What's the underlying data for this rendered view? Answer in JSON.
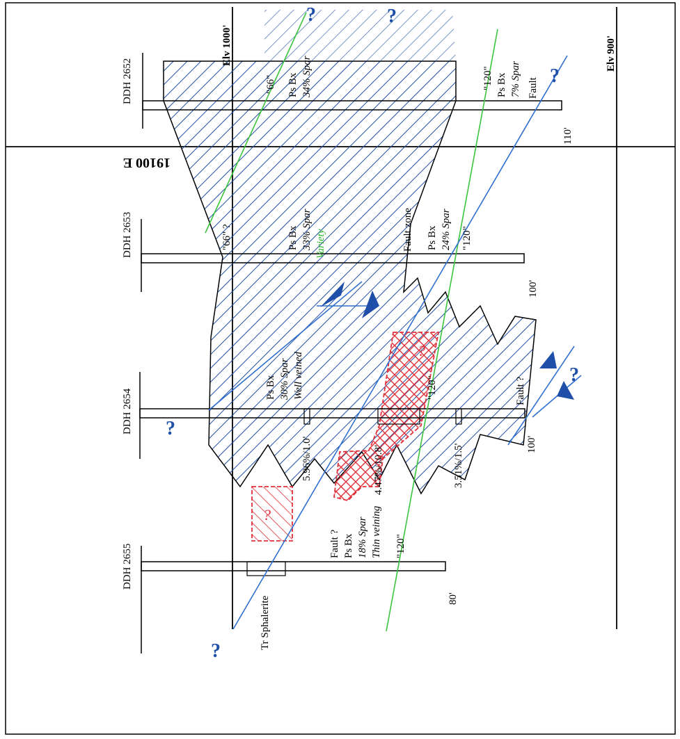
{
  "elevations": {
    "upper": "Elv 1000'",
    "lower": "Elv 900'"
  },
  "section_label": "19100 E",
  "drill_holes": [
    {
      "name": "DDH 2652",
      "depth": "110'"
    },
    {
      "name": "DDH 2653",
      "depth": "100'"
    },
    {
      "name": "DDH 2654",
      "depth": "100'"
    },
    {
      "name": "DDH 2655",
      "depth": "80'"
    }
  ],
  "labels": {
    "h2652_66": "\"66\"",
    "h2652_rock": "Ps Bx",
    "h2652_spar": "34% Spar",
    "h2652_120": "\"120\"",
    "h2652_rock2": "Ps Bx",
    "h2652_spar2": "7% Spar",
    "h2652_fault": "Fault",
    "h2653_66": "\"66\" ?",
    "h2653_rock": "Ps Bx",
    "h2653_spar": "33% Spar",
    "h2653_green": "Variety",
    "h2653_fault": "Fault zone",
    "h2653_rock2": "Ps Bx",
    "h2653_spar2": "24% Spar",
    "h2653_120": "\"120\"",
    "h2654_rock": "Ps Bx",
    "h2654_spar": "30% Spar",
    "h2654_vein": "Well veined",
    "h2654_120": "\"120\"",
    "h2654_fault": "Fault ?",
    "assay_1": "5.96%/1.0'",
    "assay_2": "4.47%/10.8'",
    "assay_3": "3.51%/1.5'",
    "h2655_fault": "Fault ?",
    "h2655_rock": "Ps Bx",
    "h2655_spar": "18% Spar",
    "h2655_vein": "Thin veining",
    "h2655_120": "\"120\"",
    "h2655_sph": "Tr Sphalerite"
  },
  "question_mark": "?",
  "colors": {
    "ore_hatch": "#1f4fa8",
    "fault_line": "#2f6fd0",
    "marker_horizon": "#3cc43c",
    "high_grade": "#e0303a"
  }
}
